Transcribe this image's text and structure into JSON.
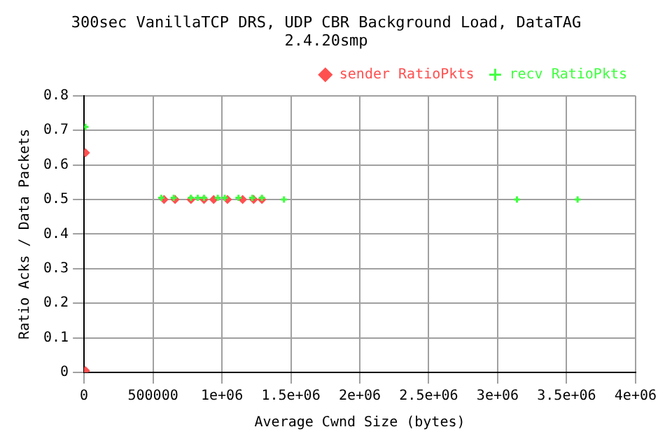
{
  "chart_data": {
    "type": "scatter",
    "title": "300sec VanillaTCP DRS, UDP CBR Background Load, DataTAG",
    "subtitle": "2.4.20smp",
    "xlabel": "Average Cwnd Size (bytes)",
    "ylabel": "Ratio Acks / Data Packets",
    "xlim": [
      0,
      4000000
    ],
    "xticks": [
      0,
      500000,
      {
        "value": 1000000,
        "label": "1e+06"
      },
      {
        "value": 1500000,
        "label": "1.5e+06"
      },
      {
        "value": 2000000,
        "label": "2e+06"
      },
      {
        "value": 2500000,
        "label": "2.5e+06"
      },
      {
        "value": 3000000,
        "label": "3e+06"
      },
      {
        "value": 3500000,
        "label": "3.5e+06"
      },
      {
        "value": 4000000,
        "label": "4e+06"
      }
    ],
    "ylim": [
      0,
      0.8
    ],
    "yticks": [
      0,
      0.1,
      0.2,
      0.3,
      0.4,
      0.5,
      0.6,
      0.7,
      0.8
    ],
    "grid": true,
    "legend": "top right",
    "series": [
      {
        "name": "sender RatioPkts",
        "color": "#ff5050",
        "marker": "diamond",
        "x": [
          10000,
          10000,
          580000,
          660000,
          775000,
          870000,
          940000,
          1040000,
          1150000,
          1230000,
          1290000
        ],
        "values": [
          0.635,
          0.005,
          0.5,
          0.5,
          0.5,
          0.5,
          0.5,
          0.5,
          0.5,
          0.5,
          0.5
        ]
      },
      {
        "name": "recv RatioPkts",
        "color": "#40ff40",
        "marker": "cross",
        "x": [
          10000,
          560000,
          650000,
          775000,
          825000,
          870000,
          970000,
          1020000,
          1120000,
          1220000,
          1290000,
          1450000,
          3140000,
          3580000
        ],
        "values": [
          0.71,
          0.505,
          0.505,
          0.505,
          0.505,
          0.505,
          0.505,
          0.505,
          0.505,
          0.505,
          0.505,
          0.5,
          0.5,
          0.5
        ]
      }
    ]
  }
}
